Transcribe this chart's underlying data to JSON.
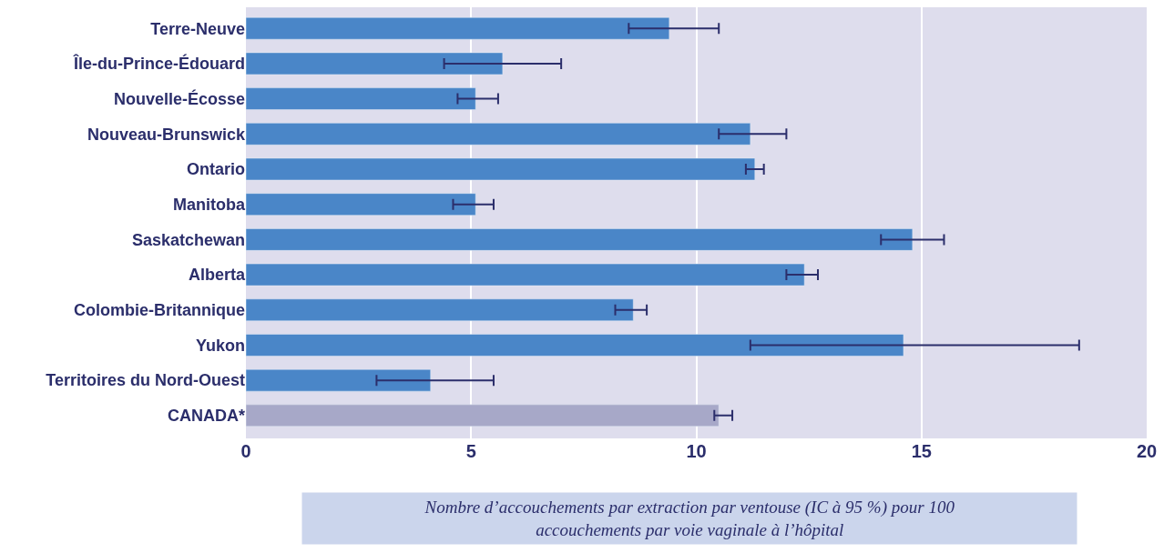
{
  "chart_data": {
    "type": "bar",
    "orientation": "horizontal",
    "xlabel": "Nombre d’accouchements par extraction par ventouse (IC à 95 %) pour 100 accouchements par voie vaginale à l’hôpital",
    "categories": [
      "Terre-Neuve",
      "Île-du-Prince-Édouard",
      "Nouvelle-Écosse",
      "Nouveau-Brunswick",
      "Ontario",
      "Manitoba",
      "Saskatchewan",
      "Alberta",
      "Colombie-Britannique",
      "Yukon",
      "Territoires du Nord-Ouest",
      "CANADA*"
    ],
    "values": [
      9.4,
      5.7,
      5.1,
      11.2,
      11.3,
      5.1,
      14.8,
      12.4,
      8.6,
      14.6,
      4.1,
      10.5
    ],
    "errors": [
      [
        8.5,
        10.5
      ],
      [
        4.4,
        7.0
      ],
      [
        4.7,
        5.6
      ],
      [
        10.5,
        12.0
      ],
      [
        11.1,
        11.5
      ],
      [
        4.6,
        5.5
      ],
      [
        14.1,
        15.5
      ],
      [
        12.0,
        12.7
      ],
      [
        8.2,
        8.9
      ],
      [
        11.2,
        18.5
      ],
      [
        2.9,
        5.5
      ],
      [
        10.4,
        10.8
      ]
    ],
    "colors": [
      "#4a86c8",
      "#4a86c8",
      "#4a86c8",
      "#4a86c8",
      "#4a86c8",
      "#4a86c8",
      "#4a86c8",
      "#4a86c8",
      "#4a86c8",
      "#4a86c8",
      "#4a86c8",
      "#a7a8c8"
    ],
    "xlim": [
      0,
      20
    ],
    "xticks": [
      0,
      5,
      10,
      15,
      20
    ],
    "grid": "x"
  }
}
